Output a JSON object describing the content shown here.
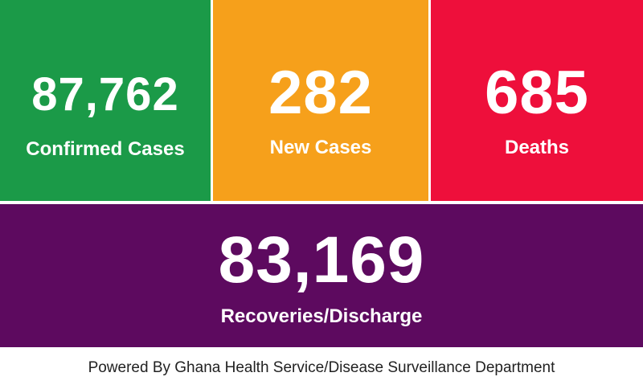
{
  "tiles": [
    {
      "number": "87,762",
      "label": "Confirmed Cases"
    },
    {
      "number": "282",
      "label": "New Cases"
    },
    {
      "number": "685",
      "label": "Deaths"
    },
    {
      "number": "83,169",
      "label": "Recoveries/Discharge"
    }
  ],
  "footer": "Powered By Ghana Health Service/Disease Surveillance Department"
}
